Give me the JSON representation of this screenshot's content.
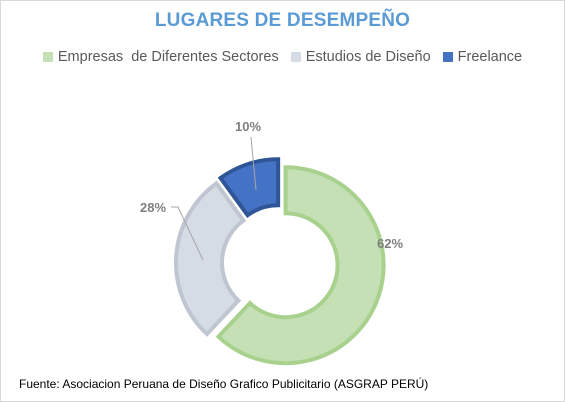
{
  "chart_data": {
    "type": "pie",
    "title": "LUGARES DE DESEMPEÑO",
    "categories": [
      "Empresas  de Diferentes Sectores",
      "Estudios de Diseño",
      "Freelance"
    ],
    "values": [
      62,
      28,
      10
    ],
    "data_labels": [
      "62%",
      "28%",
      "10%"
    ],
    "colors": [
      "#c5e0b4",
      "#d6dce5",
      "#4472c4"
    ],
    "border_colors": [
      "#a9d18e",
      "#bfc6d1",
      "#2f5597"
    ],
    "donut": true,
    "legend_position": "top"
  },
  "source_note": "Fuente: Asociacion Peruana de Diseño Grafico Publicitario (ASGRAP PERÚ)"
}
